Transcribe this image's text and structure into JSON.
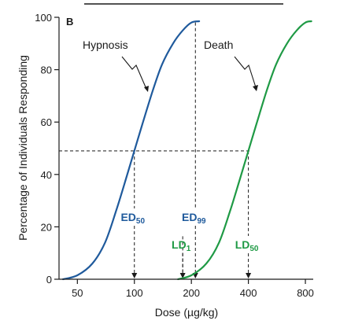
{
  "chart_data": {
    "type": "line",
    "panel_label": "B",
    "xlabel": "Dose (µg/kg)",
    "ylabel": "Percentage of Individuals Responding",
    "x_scale": "log",
    "xlim": [
      40,
      880
    ],
    "ylim": [
      0,
      100
    ],
    "x_ticks": [
      {
        "value": 50,
        "label": "50"
      },
      {
        "value": 100,
        "label": "100"
      },
      {
        "value": 200,
        "label": "200"
      },
      {
        "value": 400,
        "label": "400"
      },
      {
        "value": 800,
        "label": "800"
      }
    ],
    "y_ticks": [
      {
        "value": 0,
        "label": "0"
      },
      {
        "value": 20,
        "label": "20"
      },
      {
        "value": 40,
        "label": "40"
      },
      {
        "value": 60,
        "label": "60"
      },
      {
        "value": 80,
        "label": "80"
      },
      {
        "value": 100,
        "label": "100"
      }
    ],
    "series": [
      {
        "name": "Hypnosis",
        "color": "#1f5a9c",
        "points": [
          [
            42,
            0
          ],
          [
            50,
            1.5
          ],
          [
            60,
            6
          ],
          [
            70,
            14
          ],
          [
            80,
            26
          ],
          [
            90,
            38
          ],
          [
            100,
            49
          ],
          [
            110,
            59
          ],
          [
            125,
            72
          ],
          [
            140,
            82
          ],
          [
            160,
            90
          ],
          [
            180,
            95
          ],
          [
            200,
            98
          ],
          [
            220,
            98.5
          ]
        ]
      },
      {
        "name": "Death",
        "color": "#1f9a45",
        "points": [
          [
            170,
            0
          ],
          [
            200,
            1.5
          ],
          [
            240,
            6
          ],
          [
            280,
            14
          ],
          [
            320,
            26
          ],
          [
            360,
            38
          ],
          [
            400,
            49
          ],
          [
            440,
            59
          ],
          [
            500,
            72
          ],
          [
            560,
            82
          ],
          [
            640,
            90
          ],
          [
            720,
            95
          ],
          [
            800,
            98
          ],
          [
            860,
            98.5
          ]
        ]
      }
    ],
    "reference_level": 49,
    "markers": [
      {
        "text": "ED",
        "sub": "50",
        "x": 100,
        "y": 49,
        "color": "#1f5a9c"
      },
      {
        "text": "ED",
        "sub": "99",
        "x": 210,
        "y": 98,
        "color": "#1f5a9c"
      },
      {
        "text": "LD",
        "sub": "1",
        "x": 180,
        "y": 0.5,
        "color": "#1f9a45"
      },
      {
        "text": "LD",
        "sub": "50",
        "x": 400,
        "y": 49,
        "color": "#1f9a45"
      }
    ]
  }
}
